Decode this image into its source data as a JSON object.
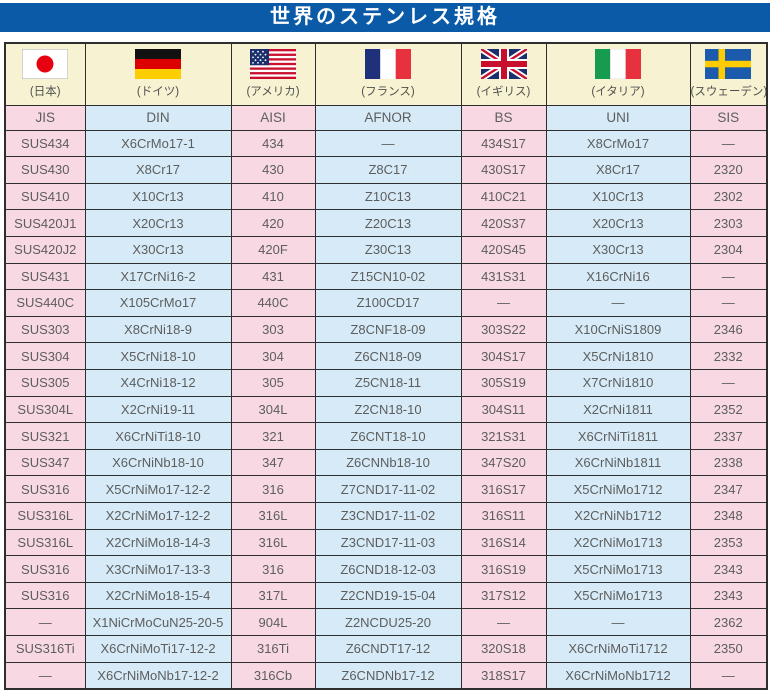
{
  "title": "世界のステンレス規格",
  "colors": {
    "title_bar": "#0b5aa8",
    "header_cream": "#f7f3d2",
    "col_pink": "#f8d9e3",
    "col_blue": "#d6ebf7",
    "border_dark": "#2e2e2e",
    "text_gray": "#5d5d5d"
  },
  "table": {
    "columns": [
      {
        "country": "(日本)",
        "code": "JIS",
        "flag": "japan-flag-icon"
      },
      {
        "country": "(ドイツ)",
        "code": "DIN",
        "flag": "germany-flag-icon"
      },
      {
        "country": "(アメリカ)",
        "code": "AISI",
        "flag": "usa-flag-icon"
      },
      {
        "country": "(フランス)",
        "code": "AFNOR",
        "flag": "france-flag-icon"
      },
      {
        "country": "(イギリス)",
        "code": "BS",
        "flag": "uk-flag-icon"
      },
      {
        "country": "(イタリア)",
        "code": "UNI",
        "flag": "italy-flag-icon"
      },
      {
        "country": "(スウェーデン)",
        "code": "SIS",
        "flag": "sweden-flag-icon"
      }
    ],
    "rows": [
      [
        "SUS434",
        "X6CrMo17-1",
        "434",
        "—",
        "434S17",
        "X8CrMo17",
        "—"
      ],
      [
        "SUS430",
        "X8Cr17",
        "430",
        "Z8C17",
        "430S17",
        "X8Cr17",
        "2320"
      ],
      [
        "SUS410",
        "X10Cr13",
        "410",
        "Z10C13",
        "410C21",
        "X10Cr13",
        "2302"
      ],
      [
        "SUS420J1",
        "X20Cr13",
        "420",
        "Z20C13",
        "420S37",
        "X20Cr13",
        "2303"
      ],
      [
        "SUS420J2",
        "X30Cr13",
        "420F",
        "Z30C13",
        "420S45",
        "X30Cr13",
        "2304"
      ],
      [
        "SUS431",
        "X17CrNi16-2",
        "431",
        "Z15CN10-02",
        "431S31",
        "X16CrNi16",
        "—"
      ],
      [
        "SUS440C",
        "X105CrMo17",
        "440C",
        "Z100CD17",
        "—",
        "—",
        "—"
      ],
      [
        "SUS303",
        "X8CrNi18-9",
        "303",
        "Z8CNF18-09",
        "303S22",
        "X10CrNiS1809",
        "2346"
      ],
      [
        "SUS304",
        "X5CrNi18-10",
        "304",
        "Z6CN18-09",
        "304S17",
        "X5CrNi1810",
        "2332"
      ],
      [
        "SUS305",
        "X4CrNi18-12",
        "305",
        "Z5CN18-11",
        "305S19",
        "X7CrNi1810",
        "—"
      ],
      [
        "SUS304L",
        "X2CrNi19-11",
        "304L",
        "Z2CN18-10",
        "304S11",
        "X2CrNi1811",
        "2352"
      ],
      [
        "SUS321",
        "X6CrNiTi18-10",
        "321",
        "Z6CNT18-10",
        "321S31",
        "X6CrNiTi1811",
        "2337"
      ],
      [
        "SUS347",
        "X6CrNiNb18-10",
        "347",
        "Z6CNNb18-10",
        "347S20",
        "X6CrNiNb1811",
        "2338"
      ],
      [
        "SUS316",
        "X5CrNiMo17-12-2",
        "316",
        "Z7CND17-11-02",
        "316S17",
        "X5CrNiMo1712",
        "2347"
      ],
      [
        "SUS316L",
        "X2CrNiMo17-12-2",
        "316L",
        "Z3CND17-11-02",
        "316S11",
        "X2CrNiNb1712",
        "2348"
      ],
      [
        "SUS316L",
        "X2CrNiMo18-14-3",
        "316L",
        "Z3CND17-11-03",
        "316S14",
        "X2CrNiMo1713",
        "2353"
      ],
      [
        "SUS316",
        "X3CrNiMo17-13-3",
        "316",
        "Z6CND18-12-03",
        "316S19",
        "X5CrNiMo1713",
        "2343"
      ],
      [
        "SUS316",
        "X2CrNiMo18-15-4",
        "317L",
        "Z2CND19-15-04",
        "317S12",
        "X5CrNiMo1713",
        "2343"
      ],
      [
        "—",
        "X1NiCrMoCuN25-20-5",
        "904L",
        "Z2NCDU25-20",
        "—",
        "—",
        "2362"
      ],
      [
        "SUS316Ti",
        "X6CrNiMoTi17-12-2",
        "316Ti",
        "Z6CNDT17-12",
        "320S18",
        "X6CrNiMoTi1712",
        "2350"
      ],
      [
        "—",
        "X6CrNiMoNb17-12-2",
        "316Cb",
        "Z6CNDNb17-12",
        "318S17",
        "X6CrNiMoNb1712",
        "—"
      ]
    ]
  }
}
